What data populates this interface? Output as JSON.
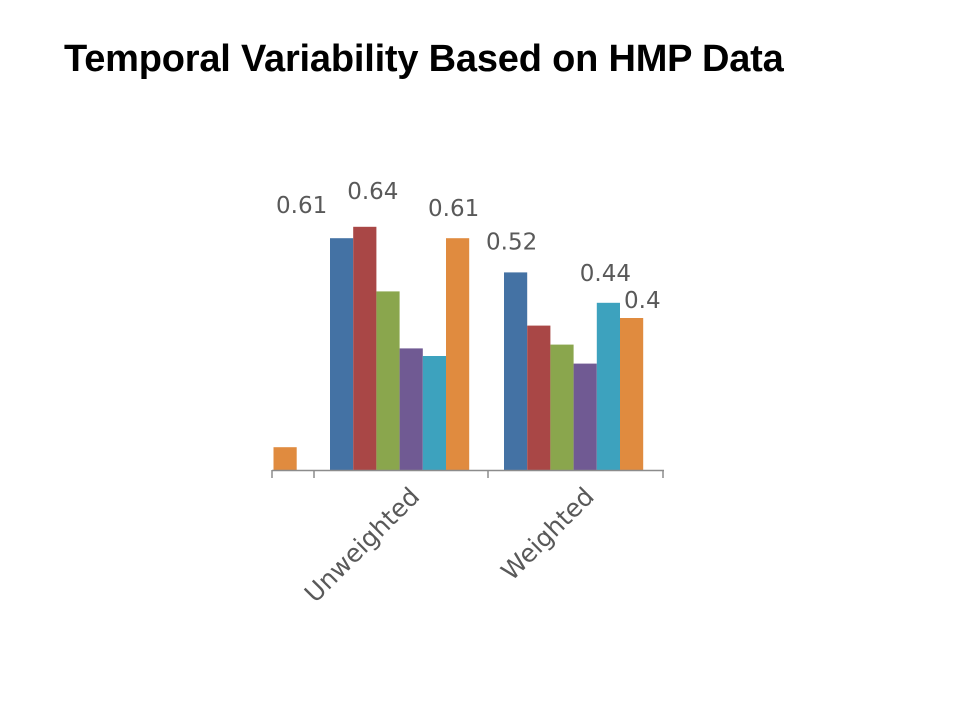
{
  "slide": {
    "title": "Temporal Variability Based on HMP Data"
  },
  "chart_data": {
    "type": "bar",
    "categories": [
      "",
      "Unweighted",
      "Weighted"
    ],
    "ylim": [
      0,
      0.7
    ],
    "grid": false,
    "legend": "none",
    "series": [
      {
        "color": "#4472a4",
        "values": [
          null,
          0.61,
          0.52
        ]
      },
      {
        "color": "#a94746",
        "values": [
          null,
          0.64,
          0.38
        ]
      },
      {
        "color": "#8aa64d",
        "values": [
          null,
          0.47,
          0.33
        ]
      },
      {
        "color": "#705a93",
        "values": [
          null,
          0.32,
          0.28
        ]
      },
      {
        "color": "#3da2be",
        "values": [
          null,
          0.3,
          0.44
        ]
      },
      {
        "color": "#e08b3f",
        "values": [
          0.06,
          0.61,
          0.4
        ]
      }
    ],
    "data_labels": [
      {
        "series": 0,
        "category": 1,
        "text": "0.61"
      },
      {
        "series": 1,
        "category": 1,
        "text": "0.64"
      },
      {
        "series": 5,
        "category": 1,
        "text": "0.61"
      },
      {
        "series": 0,
        "category": 2,
        "text": "0.52"
      },
      {
        "series": 4,
        "category": 2,
        "text": "0.44"
      },
      {
        "series": 5,
        "category": 2,
        "text": "0.4"
      }
    ]
  }
}
